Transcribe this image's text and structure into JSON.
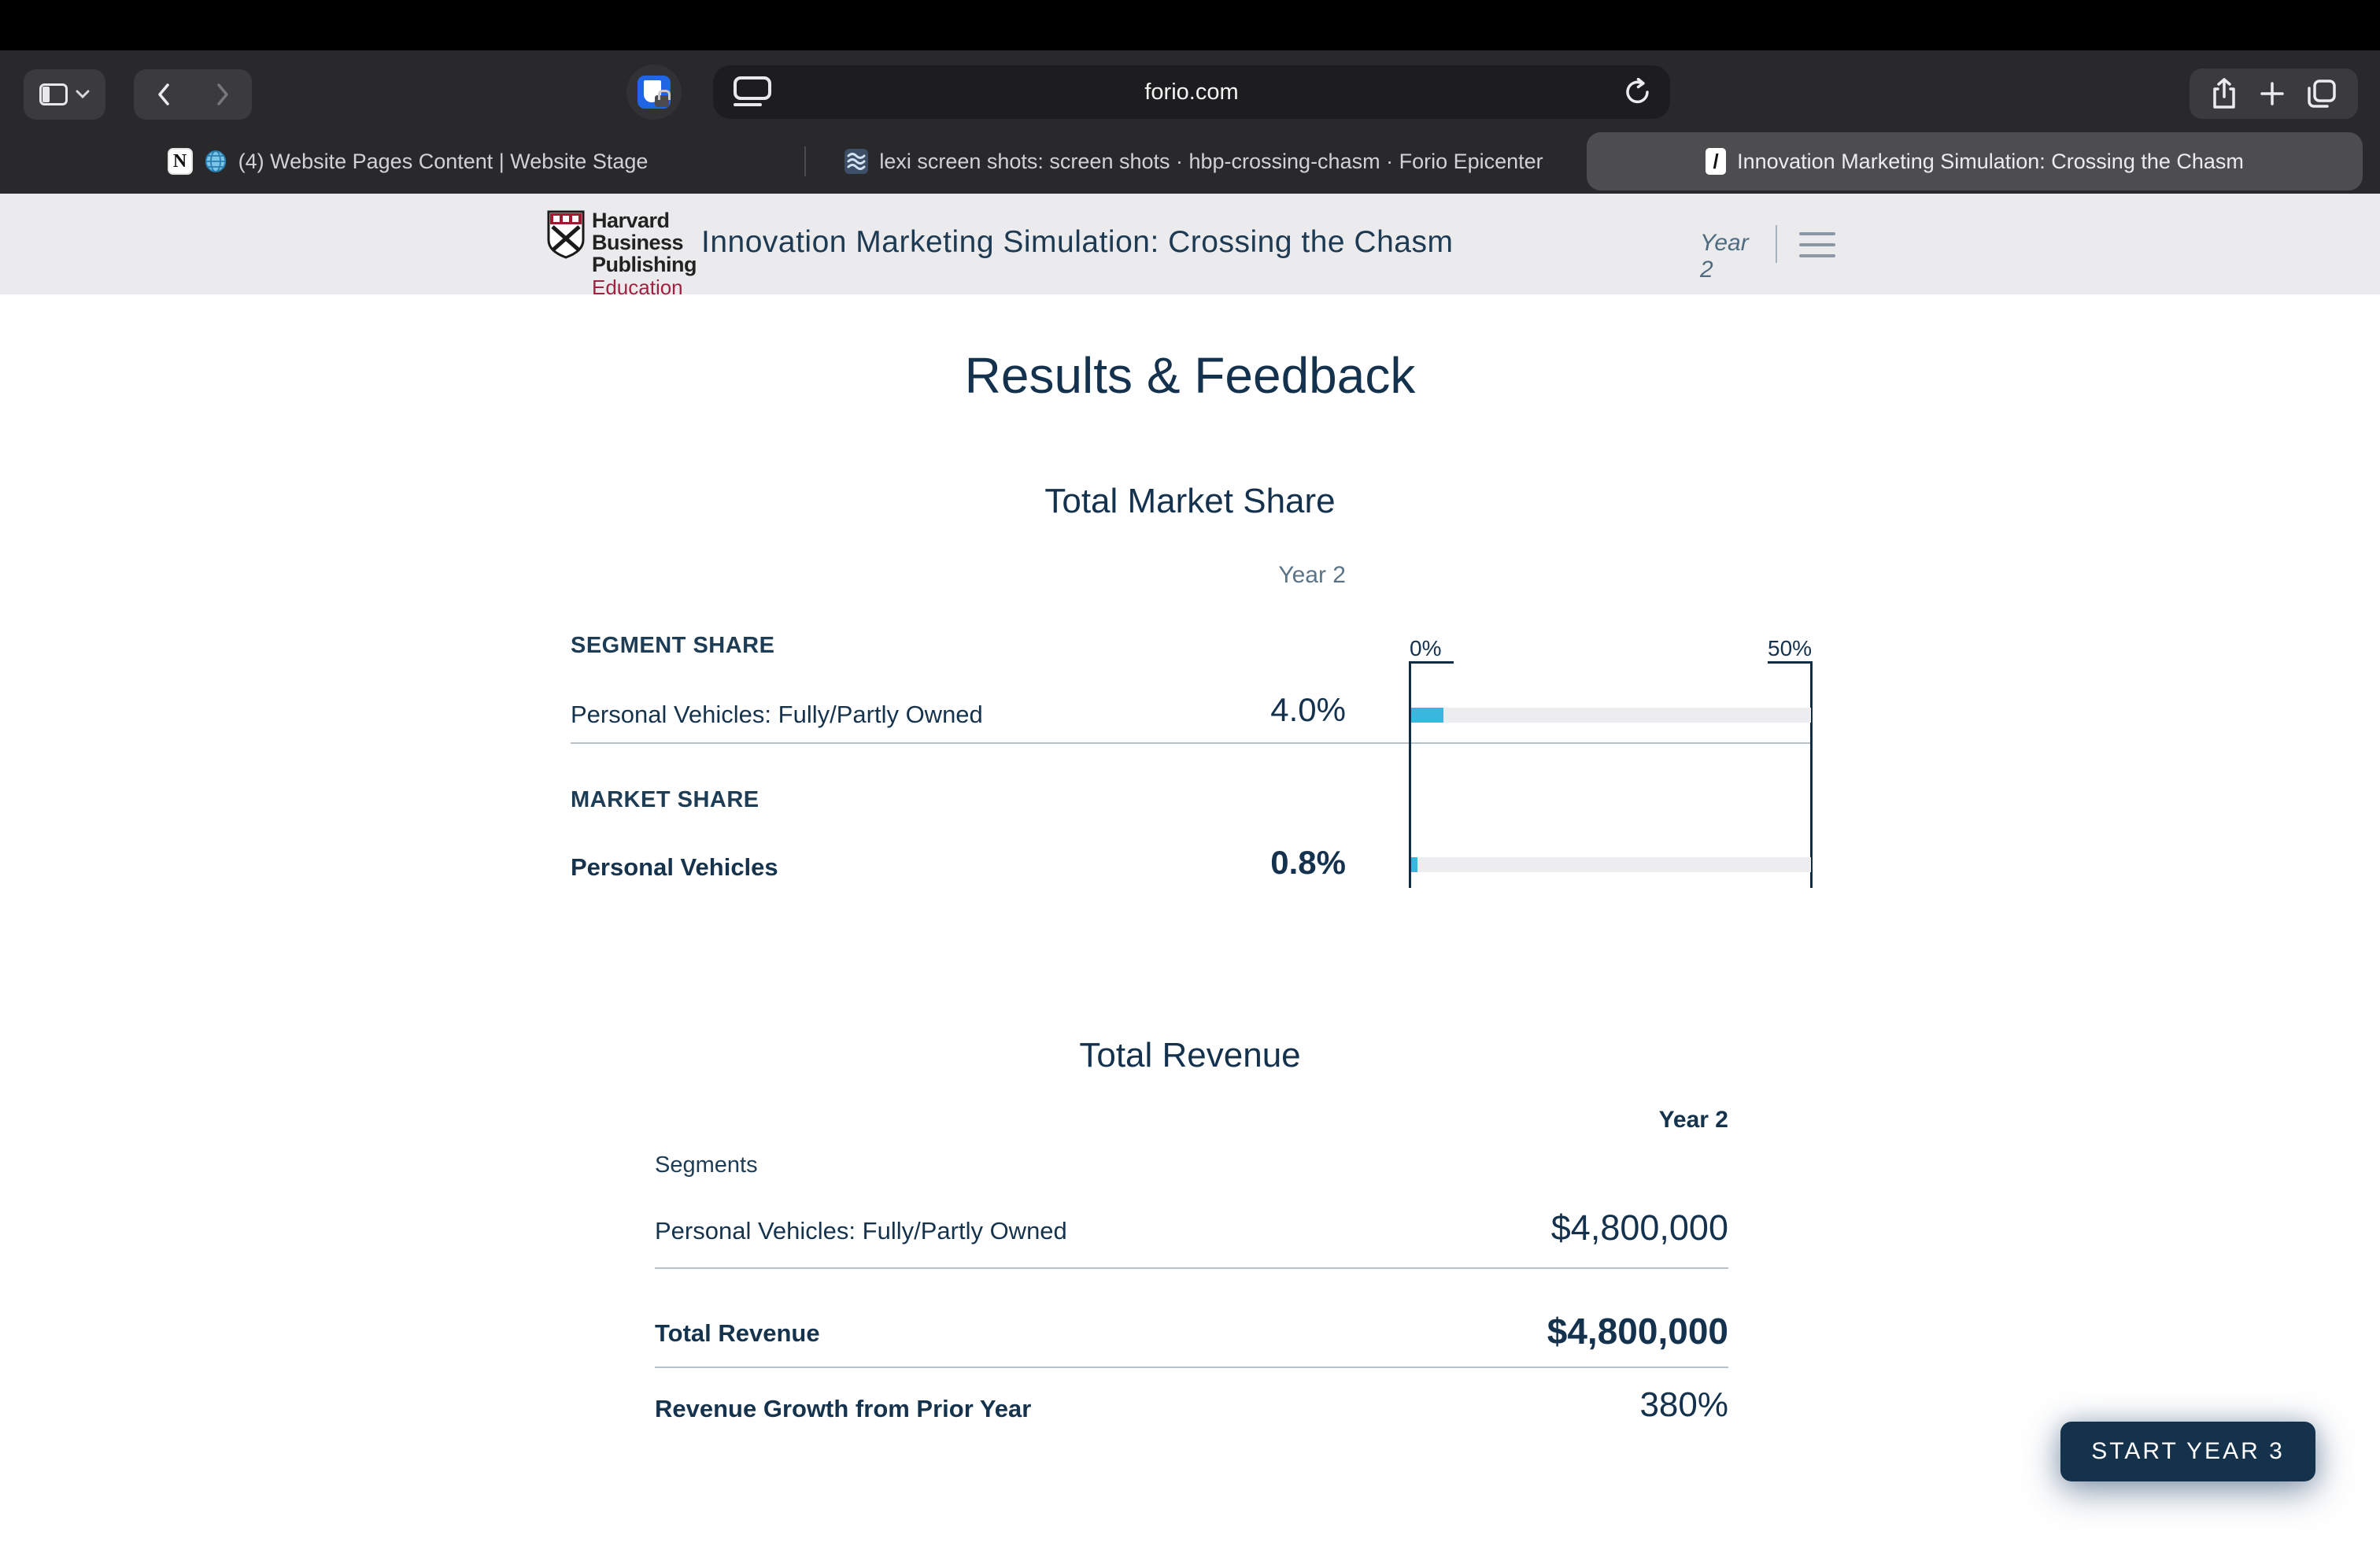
{
  "browser": {
    "url": "forio.com",
    "tabs": [
      {
        "title": "(4) Website Pages Content | Website Stage",
        "favicon_letter": "N"
      },
      {
        "title": "lexi screen shots: screen shots · hbp-crossing-chasm · Forio Epicenter"
      },
      {
        "title": "Innovation Marketing Simulation: Crossing the Chasm",
        "favicon_letter": "/",
        "active": true
      }
    ],
    "icons": [
      "sidebar-icon",
      "chevron-down-icon",
      "back-icon",
      "forward-icon",
      "extension-shield-lock-icon",
      "page-settings-icon",
      "reload-icon",
      "share-icon",
      "new-tab-icon",
      "tab-overview-icon",
      "notion-icon",
      "globe-icon",
      "forio-icon"
    ]
  },
  "site_header": {
    "logo": {
      "line1": "Harvard",
      "line2": "Business",
      "line3": "Publishing",
      "line4": "Education"
    },
    "title": "Innovation Marketing Simulation: Crossing the Chasm",
    "year_label": "Year 2"
  },
  "page": {
    "title": "Results & Feedback"
  },
  "market_share": {
    "title": "Total Market Share",
    "column_header": "Year 2",
    "group1_label": "SEGMENT SHARE",
    "group2_label": "MARKET SHARE",
    "rows": [
      {
        "label": "Personal Vehicles: Fully/Partly Owned",
        "value": "4.0%"
      },
      {
        "label": "Personal Vehicles",
        "value": "0.8%"
      }
    ],
    "axis_min_label": "0%",
    "axis_max_label": "50%"
  },
  "revenue": {
    "title": "Total Revenue",
    "column_header": "Year 2",
    "group_label": "Segments",
    "rows": [
      {
        "label": "Personal Vehicles: Fully/Partly Owned",
        "value": "$4,800,000"
      },
      {
        "label": "Total Revenue",
        "value": "$4,800,000"
      },
      {
        "label": "Revenue Growth from Prior Year",
        "value": "380%"
      }
    ]
  },
  "action": {
    "start_button_label": "START YEAR 3"
  },
  "colors": {
    "accent_cyan": "#3ab7dd",
    "navy": "#14324e",
    "crimson": "#9e2241",
    "track_gray": "#ededef"
  },
  "chart_data": {
    "type": "bar",
    "orientation": "horizontal",
    "title": "Total Market Share",
    "column": "Year 2",
    "xlim": [
      0,
      50
    ],
    "x_tick_labels": [
      "0%",
      "50%"
    ],
    "series": [
      {
        "group": "SEGMENT SHARE",
        "label": "Personal Vehicles: Fully/Partly Owned",
        "value_pct": 4.0
      },
      {
        "group": "MARKET SHARE",
        "label": "Personal Vehicles",
        "value_pct": 0.8
      }
    ],
    "bar_color": "#3ab7dd",
    "track_color": "#ededef",
    "grid": false,
    "legend": false
  }
}
